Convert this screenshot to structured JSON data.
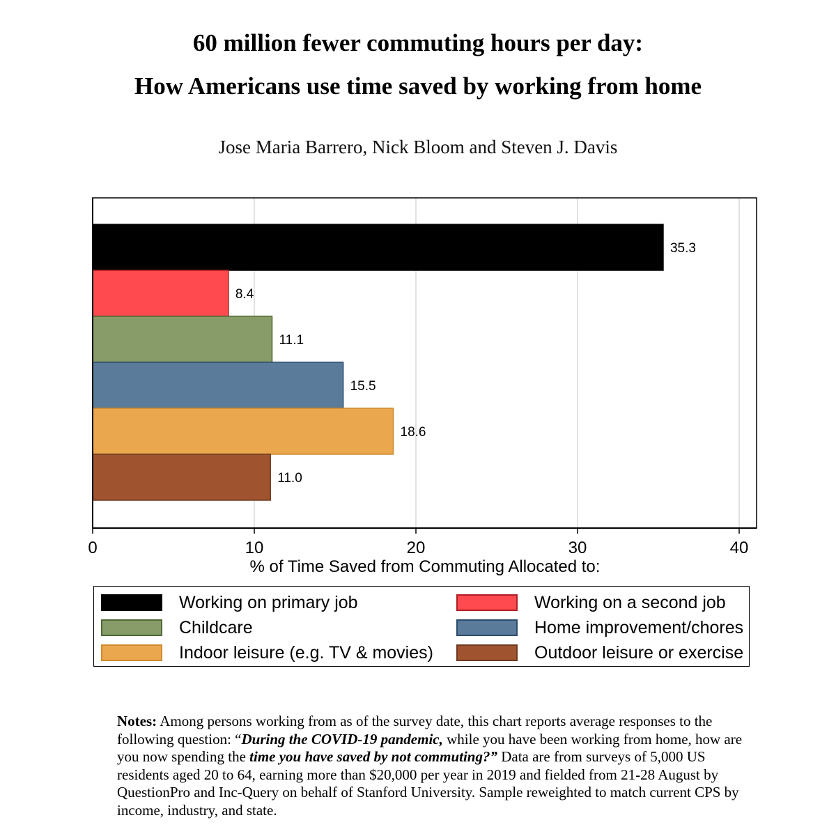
{
  "header": {
    "title_line1": "60 million fewer commuting hours per day:",
    "title_line2": "How Americans use time saved by working from home",
    "authors": "Jose Maria Barrero, Nick Bloom and Steven J. Davis"
  },
  "chart_data": {
    "type": "bar",
    "orientation": "horizontal",
    "title": "60 million fewer commuting hours per day: How Americans use time saved by working from home",
    "xlabel": "% of Time Saved from Commuting Allocated to:",
    "ylabel": "",
    "xlim": [
      0,
      40
    ],
    "xticks": [
      0,
      10,
      20,
      30,
      40
    ],
    "grid": true,
    "legend_position": "bottom",
    "categories": [
      "Working on primary job",
      "Working on a second job",
      "Childcare",
      "Home improvement/chores",
      "Indoor leisure (e.g. TV & movies)",
      "Outdoor leisure or exercise"
    ],
    "values": [
      35.3,
      8.4,
      11.1,
      15.5,
      18.6,
      11.0
    ],
    "value_labels": [
      "35.3",
      "8.4",
      "11.1",
      "15.5",
      "18.6",
      "11.0"
    ],
    "colors": [
      "#000000",
      "#ff4a4f",
      "#889c6a",
      "#5a7b9a",
      "#eba74e",
      "#a0532f"
    ],
    "borders": [
      "#000000",
      "#b02025",
      "#4f6a34",
      "#2c4c6c",
      "#d08a2c",
      "#6e3a20"
    ]
  },
  "legend": {
    "items": [
      {
        "label": "Working on primary job",
        "color": "#000000",
        "border": "#000000"
      },
      {
        "label": "Working on a second job",
        "color": "#ff4a4f",
        "border": "#b02025"
      },
      {
        "label": "Childcare",
        "color": "#889c6a",
        "border": "#4f6a34"
      },
      {
        "label": "Home improvement/chores",
        "color": "#5a7b9a",
        "border": "#2c4c6c"
      },
      {
        "label": "Indoor leisure (e.g. TV & movies)",
        "color": "#eba74e",
        "border": "#d08a2c"
      },
      {
        "label": "Outdoor leisure or exercise",
        "color": "#a0532f",
        "border": "#6e3a20"
      }
    ]
  },
  "notes": {
    "lead": "Notes:",
    "part1": " Among persons working from as of the survey date, this chart reports average responses to the following question: “",
    "emph1": "During the COVID-19 pandemic,",
    "part2": " while you have been working from home, how are you now spending the ",
    "emph2": "time you have saved by not commuting?”",
    "part3": " Data are from surveys of 5,000 US residents aged 20 to 64, earning more than $20,000 per year in 2019 and fielded from 21-28 August by QuestionPro and Inc-Query on behalf of Stanford University. Sample reweighted to match current CPS by income, industry, and state."
  }
}
